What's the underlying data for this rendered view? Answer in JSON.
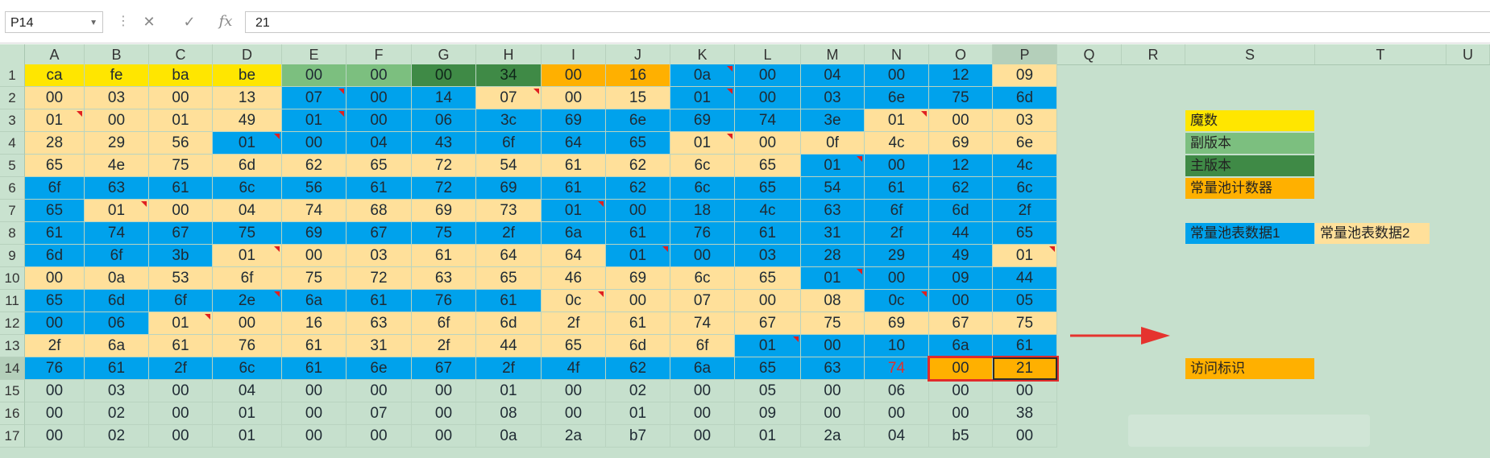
{
  "formula_bar": {
    "name_box": "P14",
    "formula": "21",
    "cancel_icon": "x-icon",
    "confirm_icon": "check-icon",
    "function_icon": "fx-icon"
  },
  "columns": [
    "A",
    "B",
    "C",
    "D",
    "E",
    "F",
    "G",
    "H",
    "I",
    "J",
    "K",
    "L",
    "M",
    "N",
    "O",
    "P",
    "Q",
    "R",
    "S",
    "T",
    "U"
  ],
  "rows": [
    "1",
    "2",
    "3",
    "4",
    "5",
    "6",
    "7",
    "8",
    "9",
    "10",
    "11",
    "12",
    "13",
    "14",
    "15",
    "16",
    "17"
  ],
  "colors": {
    "yellow": "#ffe600",
    "green": "#7cbf7f",
    "dark_green": "#3f8a46",
    "orange": "#ffb000",
    "blue": "#00a2ec",
    "cream": "#ffe09a",
    "sheet_green": "#c6e0cd",
    "selection_red": "#e02b2b"
  },
  "cells": [
    [
      [
        "ca",
        "y",
        0
      ],
      [
        "fe",
        "y",
        0
      ],
      [
        "ba",
        "y",
        0
      ],
      [
        "be",
        "y",
        0
      ],
      [
        "00",
        "g",
        0
      ],
      [
        "00",
        "g",
        0
      ],
      [
        "00",
        "d",
        0
      ],
      [
        "34",
        "d",
        0
      ],
      [
        "00",
        "o",
        0
      ],
      [
        "16",
        "o",
        0
      ],
      [
        "0a",
        "b",
        1
      ],
      [
        "00",
        "b",
        0
      ],
      [
        "04",
        "b",
        0
      ],
      [
        "00",
        "b",
        0
      ],
      [
        "12",
        "b",
        0
      ],
      [
        "09",
        "c",
        0
      ]
    ],
    [
      [
        "00",
        "c",
        0
      ],
      [
        "03",
        "c",
        0
      ],
      [
        "00",
        "c",
        0
      ],
      [
        "13",
        "c",
        0
      ],
      [
        "07",
        "b",
        1
      ],
      [
        "00",
        "b",
        0
      ],
      [
        "14",
        "b",
        0
      ],
      [
        "07",
        "c",
        1
      ],
      [
        "00",
        "c",
        0
      ],
      [
        "15",
        "c",
        0
      ],
      [
        "01",
        "b",
        1
      ],
      [
        "00",
        "b",
        0
      ],
      [
        "03",
        "b",
        0
      ],
      [
        "6e",
        "b",
        0
      ],
      [
        "75",
        "b",
        0
      ],
      [
        "6d",
        "b",
        0
      ]
    ],
    [
      [
        "01",
        "c",
        1
      ],
      [
        "00",
        "c",
        0
      ],
      [
        "01",
        "c",
        0
      ],
      [
        "49",
        "c",
        0
      ],
      [
        "01",
        "b",
        1
      ],
      [
        "00",
        "b",
        0
      ],
      [
        "06",
        "b",
        0
      ],
      [
        "3c",
        "b",
        0
      ],
      [
        "69",
        "b",
        0
      ],
      [
        "6e",
        "b",
        0
      ],
      [
        "69",
        "b",
        0
      ],
      [
        "74",
        "b",
        0
      ],
      [
        "3e",
        "b",
        0
      ],
      [
        "01",
        "c",
        1
      ],
      [
        "00",
        "c",
        0
      ],
      [
        "03",
        "c",
        0
      ]
    ],
    [
      [
        "28",
        "c",
        0
      ],
      [
        "29",
        "c",
        0
      ],
      [
        "56",
        "c",
        0
      ],
      [
        "01",
        "b",
        1
      ],
      [
        "00",
        "b",
        0
      ],
      [
        "04",
        "b",
        0
      ],
      [
        "43",
        "b",
        0
      ],
      [
        "6f",
        "b",
        0
      ],
      [
        "64",
        "b",
        0
      ],
      [
        "65",
        "b",
        0
      ],
      [
        "01",
        "c",
        1
      ],
      [
        "00",
        "c",
        0
      ],
      [
        "0f",
        "c",
        0
      ],
      [
        "4c",
        "c",
        0
      ],
      [
        "69",
        "c",
        0
      ],
      [
        "6e",
        "c",
        0
      ]
    ],
    [
      [
        "65",
        "c",
        0
      ],
      [
        "4e",
        "c",
        0
      ],
      [
        "75",
        "c",
        0
      ],
      [
        "6d",
        "c",
        0
      ],
      [
        "62",
        "c",
        0
      ],
      [
        "65",
        "c",
        0
      ],
      [
        "72",
        "c",
        0
      ],
      [
        "54",
        "c",
        0
      ],
      [
        "61",
        "c",
        0
      ],
      [
        "62",
        "c",
        0
      ],
      [
        "6c",
        "c",
        0
      ],
      [
        "65",
        "c",
        0
      ],
      [
        "01",
        "b",
        1
      ],
      [
        "00",
        "b",
        0
      ],
      [
        "12",
        "b",
        0
      ],
      [
        "4c",
        "b",
        0
      ]
    ],
    [
      [
        "6f",
        "b",
        0
      ],
      [
        "63",
        "b",
        0
      ],
      [
        "61",
        "b",
        0
      ],
      [
        "6c",
        "b",
        0
      ],
      [
        "56",
        "b",
        0
      ],
      [
        "61",
        "b",
        0
      ],
      [
        "72",
        "b",
        0
      ],
      [
        "69",
        "b",
        0
      ],
      [
        "61",
        "b",
        0
      ],
      [
        "62",
        "b",
        0
      ],
      [
        "6c",
        "b",
        0
      ],
      [
        "65",
        "b",
        0
      ],
      [
        "54",
        "b",
        0
      ],
      [
        "61",
        "b",
        0
      ],
      [
        "62",
        "b",
        0
      ],
      [
        "6c",
        "b",
        0
      ]
    ],
    [
      [
        "65",
        "b",
        0
      ],
      [
        "01",
        "c",
        1
      ],
      [
        "00",
        "c",
        0
      ],
      [
        "04",
        "c",
        0
      ],
      [
        "74",
        "c",
        0
      ],
      [
        "68",
        "c",
        0
      ],
      [
        "69",
        "c",
        0
      ],
      [
        "73",
        "c",
        0
      ],
      [
        "01",
        "b",
        1
      ],
      [
        "00",
        "b",
        0
      ],
      [
        "18",
        "b",
        0
      ],
      [
        "4c",
        "b",
        0
      ],
      [
        "63",
        "b",
        0
      ],
      [
        "6f",
        "b",
        0
      ],
      [
        "6d",
        "b",
        0
      ],
      [
        "2f",
        "b",
        0
      ]
    ],
    [
      [
        "61",
        "b",
        0
      ],
      [
        "74",
        "b",
        0
      ],
      [
        "67",
        "b",
        0
      ],
      [
        "75",
        "b",
        0
      ],
      [
        "69",
        "b",
        0
      ],
      [
        "67",
        "b",
        0
      ],
      [
        "75",
        "b",
        0
      ],
      [
        "2f",
        "b",
        0
      ],
      [
        "6a",
        "b",
        0
      ],
      [
        "61",
        "b",
        0
      ],
      [
        "76",
        "b",
        0
      ],
      [
        "61",
        "b",
        0
      ],
      [
        "31",
        "b",
        0
      ],
      [
        "2f",
        "b",
        0
      ],
      [
        "44",
        "b",
        0
      ],
      [
        "65",
        "b",
        0
      ]
    ],
    [
      [
        "6d",
        "b",
        0
      ],
      [
        "6f",
        "b",
        0
      ],
      [
        "3b",
        "b",
        0
      ],
      [
        "01",
        "c",
        1
      ],
      [
        "00",
        "c",
        0
      ],
      [
        "03",
        "c",
        0
      ],
      [
        "61",
        "c",
        0
      ],
      [
        "64",
        "c",
        0
      ],
      [
        "64",
        "c",
        0
      ],
      [
        "01",
        "b",
        1
      ],
      [
        "00",
        "b",
        0
      ],
      [
        "03",
        "b",
        0
      ],
      [
        "28",
        "b",
        0
      ],
      [
        "29",
        "b",
        0
      ],
      [
        "49",
        "b",
        0
      ],
      [
        "01",
        "c",
        1
      ]
    ],
    [
      [
        "00",
        "c",
        0
      ],
      [
        "0a",
        "c",
        0
      ],
      [
        "53",
        "c",
        0
      ],
      [
        "6f",
        "c",
        0
      ],
      [
        "75",
        "c",
        0
      ],
      [
        "72",
        "c",
        0
      ],
      [
        "63",
        "c",
        0
      ],
      [
        "65",
        "c",
        0
      ],
      [
        "46",
        "c",
        0
      ],
      [
        "69",
        "c",
        0
      ],
      [
        "6c",
        "c",
        0
      ],
      [
        "65",
        "c",
        0
      ],
      [
        "01",
        "b",
        1
      ],
      [
        "00",
        "b",
        0
      ],
      [
        "09",
        "b",
        0
      ],
      [
        "44",
        "b",
        0
      ]
    ],
    [
      [
        "65",
        "b",
        0
      ],
      [
        "6d",
        "b",
        0
      ],
      [
        "6f",
        "b",
        0
      ],
      [
        "2e",
        "b",
        1
      ],
      [
        "6a",
        "b",
        0
      ],
      [
        "61",
        "b",
        0
      ],
      [
        "76",
        "b",
        0
      ],
      [
        "61",
        "b",
        0
      ],
      [
        "0c",
        "c",
        1
      ],
      [
        "00",
        "c",
        0
      ],
      [
        "07",
        "c",
        0
      ],
      [
        "00",
        "c",
        0
      ],
      [
        "08",
        "c",
        0
      ],
      [
        "0c",
        "b",
        1
      ],
      [
        "00",
        "b",
        0
      ],
      [
        "05",
        "b",
        0
      ]
    ],
    [
      [
        "00",
        "b",
        0
      ],
      [
        "06",
        "b",
        0
      ],
      [
        "01",
        "c",
        1
      ],
      [
        "00",
        "c",
        0
      ],
      [
        "16",
        "c",
        0
      ],
      [
        "63",
        "c",
        0
      ],
      [
        "6f",
        "c",
        0
      ],
      [
        "6d",
        "c",
        0
      ],
      [
        "2f",
        "c",
        0
      ],
      [
        "61",
        "c",
        0
      ],
      [
        "74",
        "c",
        0
      ],
      [
        "67",
        "c",
        0
      ],
      [
        "75",
        "c",
        0
      ],
      [
        "69",
        "c",
        0
      ],
      [
        "67",
        "c",
        0
      ],
      [
        "75",
        "c",
        0
      ]
    ],
    [
      [
        "2f",
        "c",
        0
      ],
      [
        "6a",
        "c",
        0
      ],
      [
        "61",
        "c",
        0
      ],
      [
        "76",
        "c",
        0
      ],
      [
        "61",
        "c",
        0
      ],
      [
        "31",
        "c",
        0
      ],
      [
        "2f",
        "c",
        0
      ],
      [
        "44",
        "c",
        0
      ],
      [
        "65",
        "c",
        0
      ],
      [
        "6d",
        "c",
        0
      ],
      [
        "6f",
        "c",
        0
      ],
      [
        "01",
        "b",
        1
      ],
      [
        "00",
        "b",
        0
      ],
      [
        "10",
        "b",
        0
      ],
      [
        "6a",
        "b",
        0
      ],
      [
        "61",
        "b",
        0
      ]
    ],
    [
      [
        "76",
        "b",
        0
      ],
      [
        "61",
        "b",
        0
      ],
      [
        "2f",
        "b",
        0
      ],
      [
        "6c",
        "b",
        0
      ],
      [
        "61",
        "b",
        0
      ],
      [
        "6e",
        "b",
        0
      ],
      [
        "67",
        "b",
        0
      ],
      [
        "2f",
        "b",
        0
      ],
      [
        "4f",
        "b",
        0
      ],
      [
        "62",
        "b",
        0
      ],
      [
        "6a",
        "b",
        0
      ],
      [
        "65",
        "b",
        0
      ],
      [
        "63",
        "b",
        0
      ],
      [
        "74",
        "b",
        2
      ],
      [
        "00",
        "o",
        0
      ],
      [
        "21",
        "o",
        0
      ]
    ],
    [
      [
        "00",
        "n",
        0
      ],
      [
        "03",
        "n",
        0
      ],
      [
        "00",
        "n",
        0
      ],
      [
        "04",
        "n",
        0
      ],
      [
        "00",
        "n",
        0
      ],
      [
        "00",
        "n",
        0
      ],
      [
        "00",
        "n",
        0
      ],
      [
        "01",
        "n",
        0
      ],
      [
        "00",
        "n",
        0
      ],
      [
        "02",
        "n",
        0
      ],
      [
        "00",
        "n",
        0
      ],
      [
        "05",
        "n",
        0
      ],
      [
        "00",
        "n",
        0
      ],
      [
        "06",
        "n",
        0
      ],
      [
        "00",
        "n",
        0
      ],
      [
        "00",
        "n",
        0
      ]
    ],
    [
      [
        "00",
        "n",
        0
      ],
      [
        "02",
        "n",
        0
      ],
      [
        "00",
        "n",
        0
      ],
      [
        "01",
        "n",
        0
      ],
      [
        "00",
        "n",
        0
      ],
      [
        "07",
        "n",
        0
      ],
      [
        "00",
        "n",
        0
      ],
      [
        "08",
        "n",
        0
      ],
      [
        "00",
        "n",
        0
      ],
      [
        "01",
        "n",
        0
      ],
      [
        "00",
        "n",
        0
      ],
      [
        "09",
        "n",
        0
      ],
      [
        "00",
        "n",
        0
      ],
      [
        "00",
        "n",
        0
      ],
      [
        "00",
        "n",
        0
      ],
      [
        "38",
        "n",
        0
      ]
    ],
    [
      [
        "00",
        "n",
        0
      ],
      [
        "02",
        "n",
        0
      ],
      [
        "00",
        "n",
        0
      ],
      [
        "01",
        "n",
        0
      ],
      [
        "00",
        "n",
        0
      ],
      [
        "00",
        "n",
        0
      ],
      [
        "00",
        "n",
        0
      ],
      [
        "0a",
        "n",
        0
      ],
      [
        "2a",
        "n",
        0
      ],
      [
        "b7",
        "n",
        0
      ],
      [
        "00",
        "n",
        0
      ],
      [
        "01",
        "n",
        0
      ],
      [
        "2a",
        "n",
        0
      ],
      [
        "04",
        "n",
        0
      ],
      [
        "b5",
        "n",
        0
      ],
      [
        "00",
        "n",
        0
      ]
    ]
  ],
  "legend": [
    {
      "label": "魔数",
      "color": "#ffe600"
    },
    {
      "label": "副版本",
      "color": "#7cbf7f"
    },
    {
      "label": "主版本",
      "color": "#3f8a46"
    },
    {
      "label": "常量池计数器",
      "color": "#ffb000"
    },
    {
      "label": "常量池表数据1",
      "color": "#00a2ec"
    },
    {
      "label": "常量池表数据2",
      "color": "#ffe09a"
    },
    {
      "label": "访问标识",
      "color": "#ffb000"
    }
  ]
}
